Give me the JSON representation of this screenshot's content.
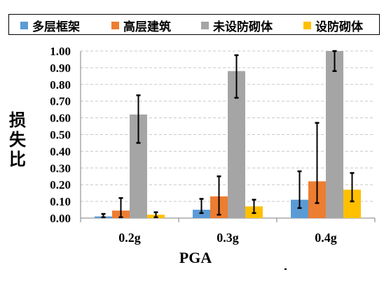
{
  "chart_data": {
    "type": "bar",
    "categories": [
      "0.2g",
      "0.3g",
      "0.4g"
    ],
    "series": [
      {
        "name": "多层框架",
        "color": "#5b9bd5",
        "values": [
          0.01,
          0.05,
          0.11
        ],
        "err_low": [
          0.005,
          0.03,
          0.06
        ],
        "err_high": [
          0.025,
          0.115,
          0.28
        ]
      },
      {
        "name": "高层建筑",
        "color": "#ed7d31",
        "values": [
          0.045,
          0.13,
          0.22
        ],
        "err_low": [
          0.005,
          0.02,
          0.09
        ],
        "err_high": [
          0.12,
          0.25,
          0.57
        ]
      },
      {
        "name": "未设防砌体",
        "color": "#a5a5a5",
        "values": [
          0.62,
          0.88,
          1.0
        ],
        "err_low": [
          0.45,
          0.72,
          0.88
        ],
        "err_high": [
          0.735,
          0.975,
          1.0
        ]
      },
      {
        "name": "设防砌体",
        "color": "#ffc000",
        "values": [
          0.02,
          0.07,
          0.17
        ],
        "err_low": [
          0.005,
          0.03,
          0.1
        ],
        "err_high": [
          0.035,
          0.11,
          0.27
        ]
      }
    ],
    "ylim": [
      0,
      1.0
    ],
    "yticks": [
      "0.00",
      "0.10",
      "0.20",
      "0.30",
      "0.40",
      "0.50",
      "0.60",
      "0.70",
      "0.80",
      "0.90",
      "1.00"
    ],
    "xlabel": "PGA",
    "ylabel": "损失比",
    "grid": true,
    "legend_position": "top"
  }
}
